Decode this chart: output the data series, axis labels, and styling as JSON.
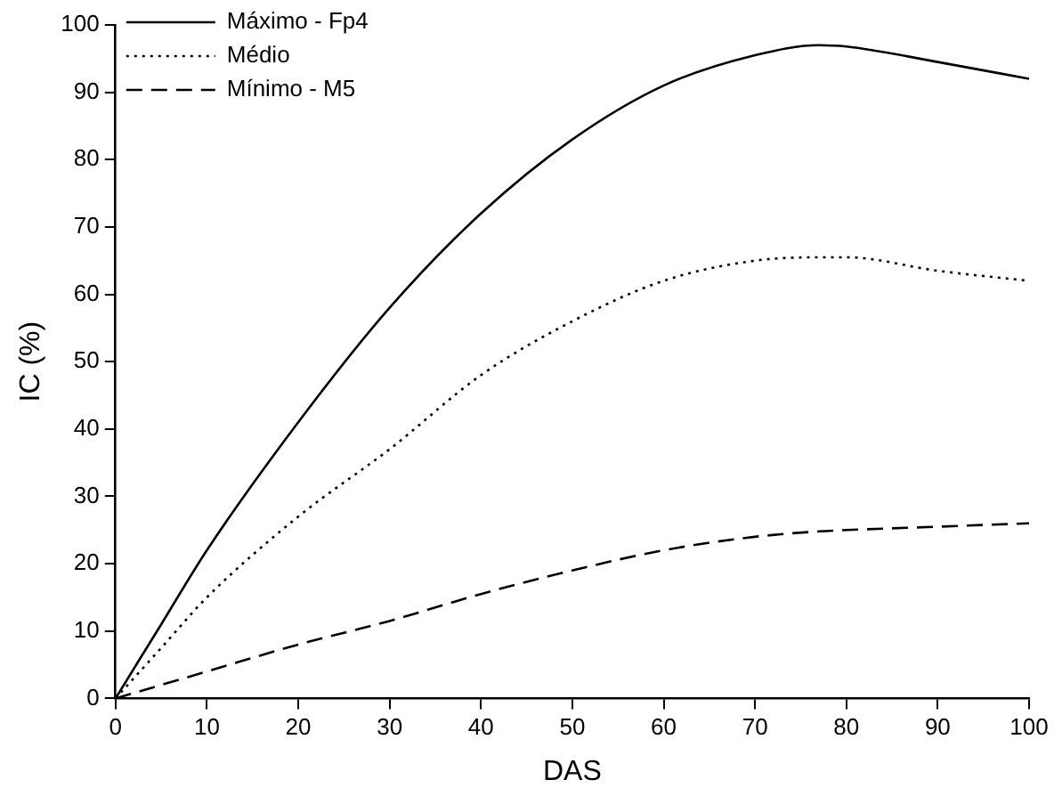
{
  "chart_data": {
    "type": "line",
    "xlabel": "DAS",
    "ylabel": "IC (%)",
    "xlim": [
      0,
      100
    ],
    "xticks": [
      0,
      10,
      20,
      30,
      40,
      50,
      60,
      70,
      80,
      90,
      100
    ],
    "ylim": [
      0,
      100
    ],
    "yticks": [
      0,
      10,
      20,
      30,
      40,
      50,
      60,
      70,
      80,
      90,
      100
    ],
    "grid": false,
    "legend": "top left",
    "marker": "none",
    "x": [
      0,
      5,
      10,
      20,
      30,
      40,
      50,
      60,
      70,
      77,
      80,
      90,
      100
    ],
    "series": [
      {
        "name": "Máximo - Fp4",
        "color": "#000000",
        "line_style": "solid",
        "values": [
          0,
          11,
          22,
          41,
          58,
          72,
          83,
          91,
          95.5,
          97,
          96.8,
          94.5,
          92
        ]
      },
      {
        "name": "Médio",
        "color": "#000000",
        "line_style": "dotted",
        "values": [
          0,
          7.5,
          15,
          27,
          37,
          48,
          56,
          62,
          65,
          65.5,
          65.5,
          63.5,
          62
        ]
      },
      {
        "name": "Mínimo - M5",
        "color": "#000000",
        "line_style": "dashed",
        "values": [
          0,
          2,
          4,
          8,
          11.5,
          15.5,
          19,
          22,
          24,
          24.8,
          25,
          25.5,
          26
        ]
      }
    ]
  }
}
